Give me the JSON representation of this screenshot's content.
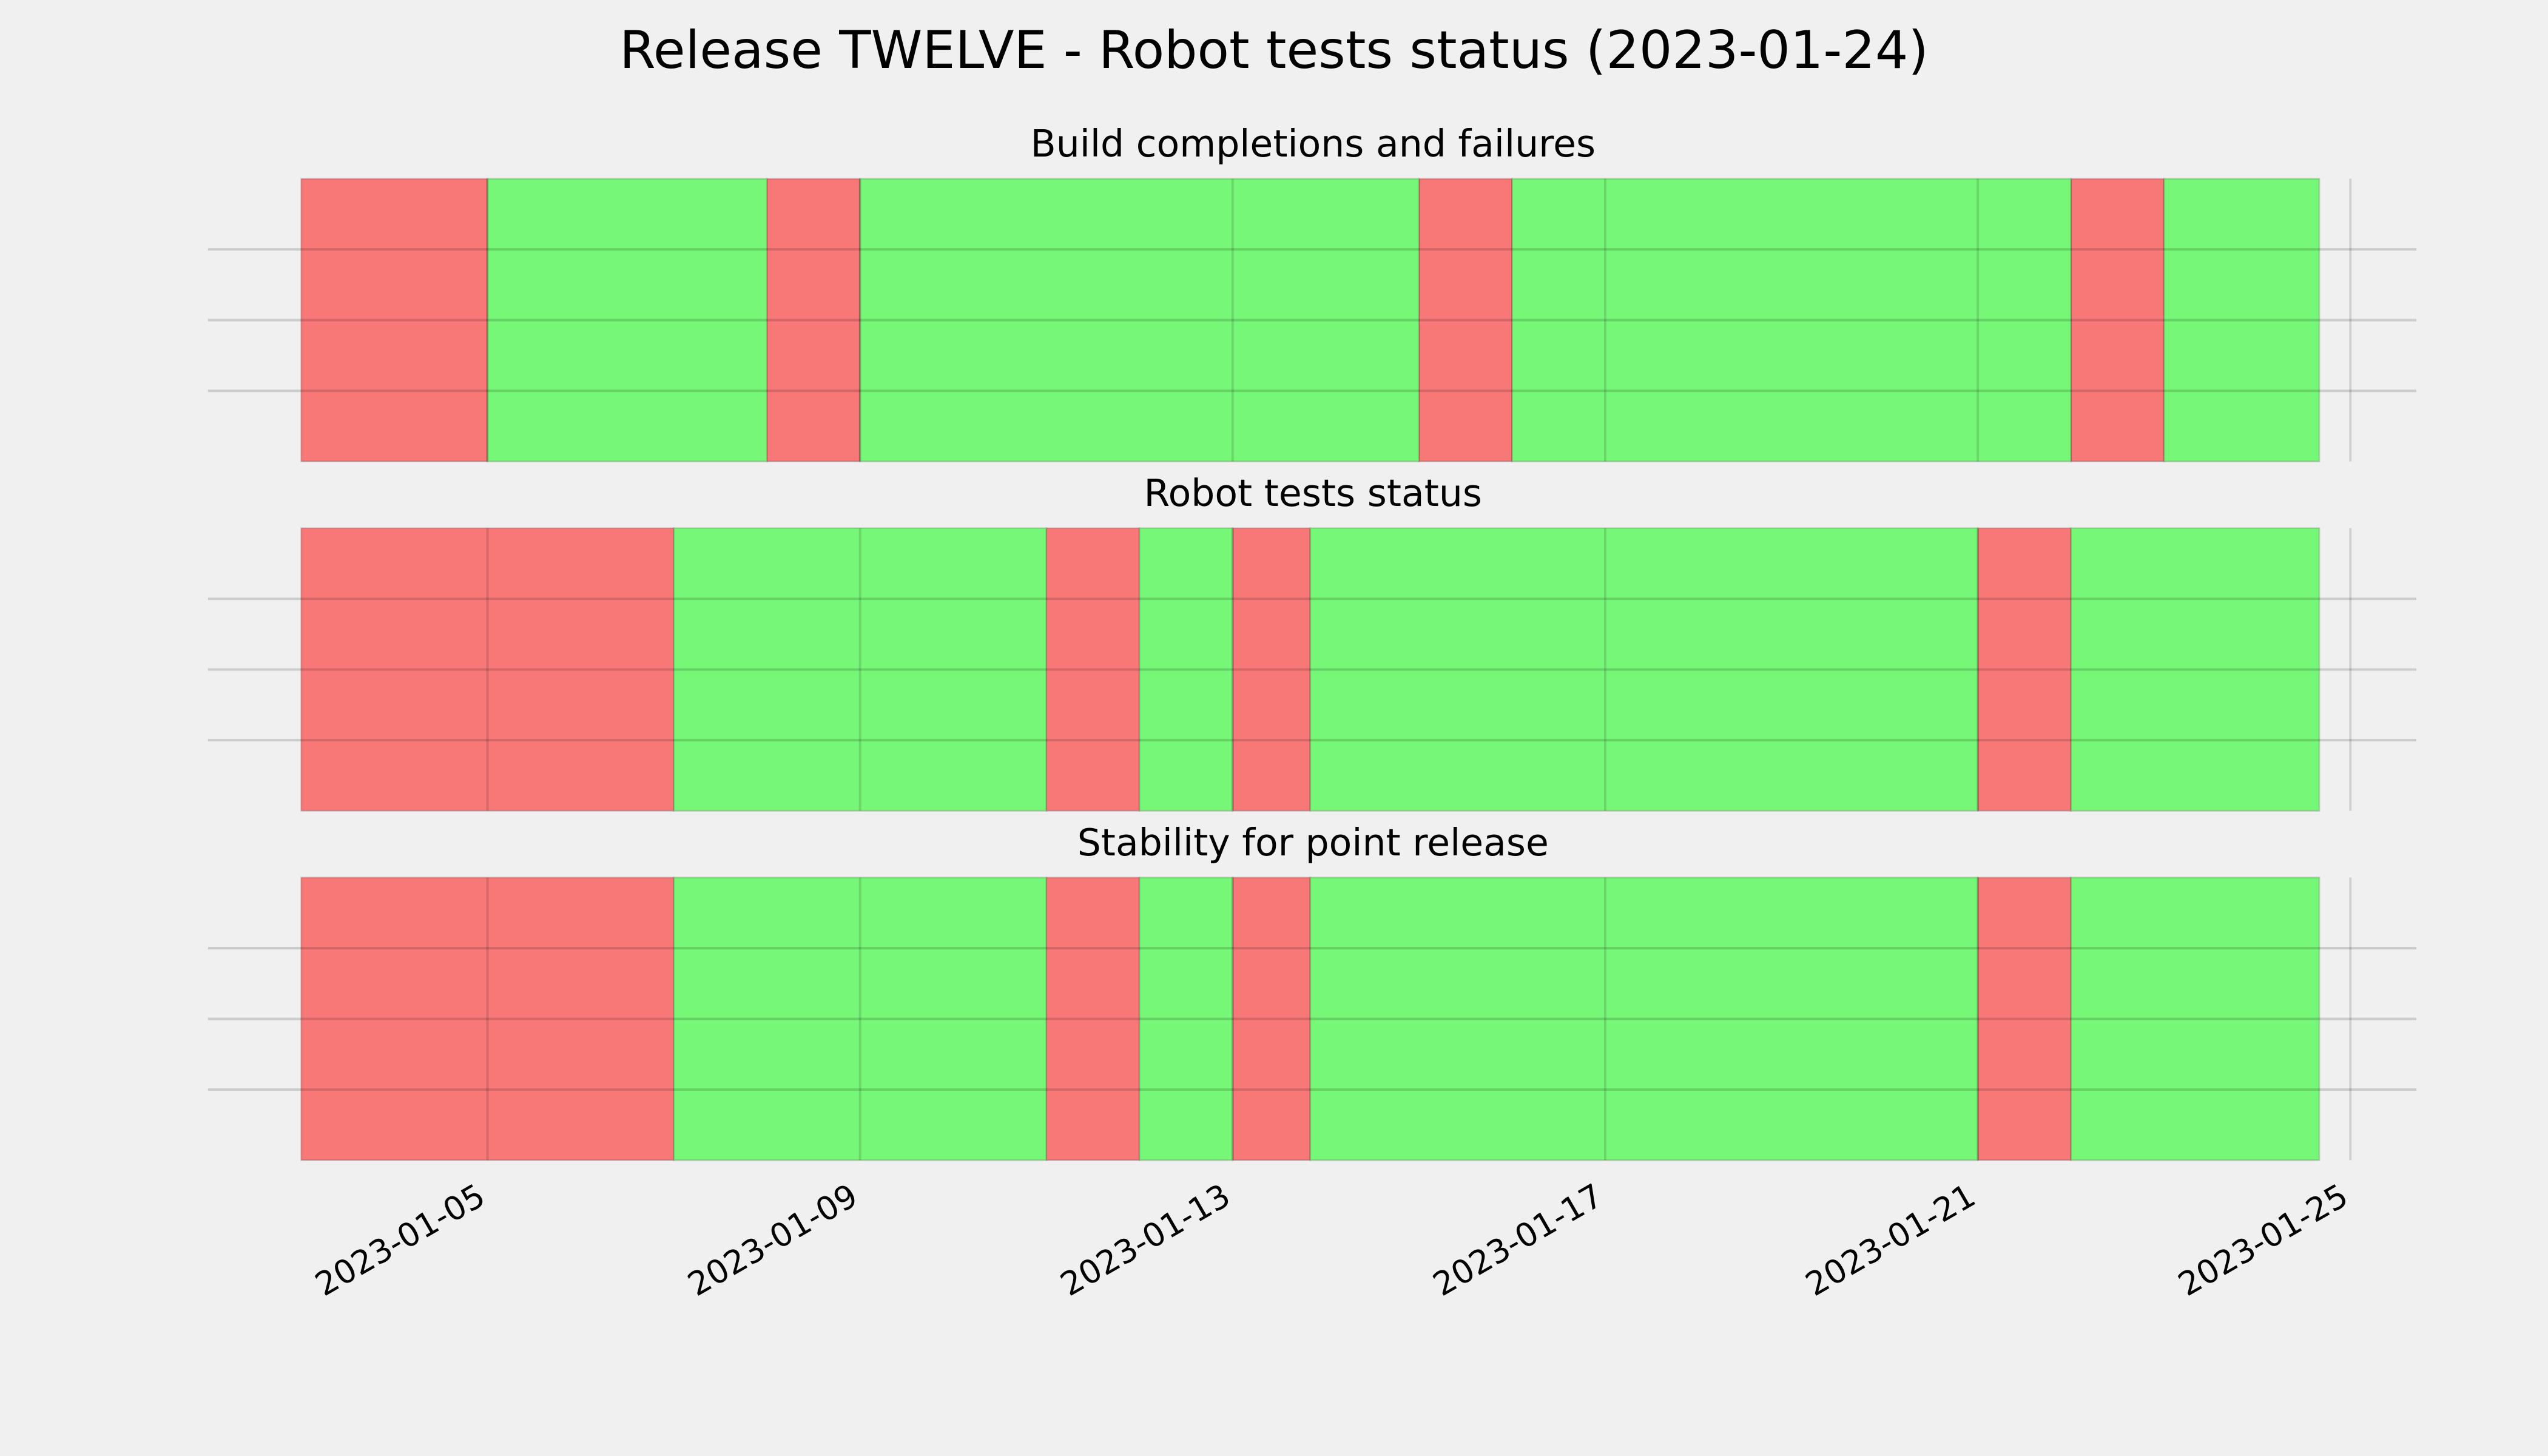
{
  "title": "Release TWELVE - Robot tests status (2023-01-24)",
  "chart_data": [
    {
      "type": "timeline",
      "title": "Build completions and failures",
      "xlim": [
        "2023-01-02",
        "2023-01-25T17:00"
      ],
      "xticks": [
        "2023-01-05",
        "2023-01-09",
        "2023-01-13",
        "2023-01-17",
        "2023-01-21",
        "2023-01-25"
      ],
      "ylim": [
        0,
        1
      ],
      "yticks": [
        0.25,
        0.5,
        0.75
      ],
      "grid": true,
      "series": [
        {
          "color": "#f87878",
          "start": [
            "2023-01-03",
            "2023-01-08",
            "2023-01-15",
            "2023-01-22"
          ],
          "end": [
            "2023-01-05",
            "2023-01-09",
            "2023-01-16",
            "2023-01-23"
          ]
        },
        {
          "color": "#77f777",
          "start": [
            "2023-01-05",
            "2023-01-09",
            "2023-01-16",
            "2023-01-23"
          ],
          "end": [
            "2023-01-08",
            "2023-01-15",
            "2023-01-22",
            "2023-01-24T16:00"
          ]
        }
      ]
    },
    {
      "type": "timeline",
      "title": "Robot tests status",
      "xlim": [
        "2023-01-02",
        "2023-01-25T17:00"
      ],
      "xticks": [
        "2023-01-05",
        "2023-01-09",
        "2023-01-13",
        "2023-01-17",
        "2023-01-21",
        "2023-01-25"
      ],
      "ylim": [
        0,
        1
      ],
      "yticks": [
        0.25,
        0.5,
        0.75
      ],
      "grid": true,
      "series": [
        {
          "color": "#f87878",
          "start": [
            "2023-01-03",
            "2023-01-11",
            "2023-01-13",
            "2023-01-21"
          ],
          "end": [
            "2023-01-07",
            "2023-01-12",
            "2023-01-13T20:00",
            "2023-01-22"
          ]
        },
        {
          "color": "#77f777",
          "start": [
            "2023-01-07",
            "2023-01-12",
            "2023-01-13T20:00",
            "2023-01-22"
          ],
          "end": [
            "2023-01-11",
            "2023-01-13",
            "2023-01-21",
            "2023-01-24T16:00"
          ]
        }
      ]
    },
    {
      "type": "timeline",
      "title": "Stability for point release",
      "xlim": [
        "2023-01-02",
        "2023-01-25T17:00"
      ],
      "xticks": [
        "2023-01-05",
        "2023-01-09",
        "2023-01-13",
        "2023-01-17",
        "2023-01-21",
        "2023-01-25"
      ],
      "ylim": [
        0,
        1
      ],
      "yticks": [
        0.25,
        0.5,
        0.75
      ],
      "grid": true,
      "series": [
        {
          "color": "#f87878",
          "start": [
            "2023-01-03",
            "2023-01-11",
            "2023-01-13",
            "2023-01-21"
          ],
          "end": [
            "2023-01-07",
            "2023-01-12",
            "2023-01-13T20:00",
            "2023-01-22"
          ]
        },
        {
          "color": "#77f777",
          "start": [
            "2023-01-07",
            "2023-01-12",
            "2023-01-13T20:00",
            "2023-01-22"
          ],
          "end": [
            "2023-01-11",
            "2023-01-13",
            "2023-01-21",
            "2023-01-24T16:00"
          ]
        }
      ]
    }
  ]
}
